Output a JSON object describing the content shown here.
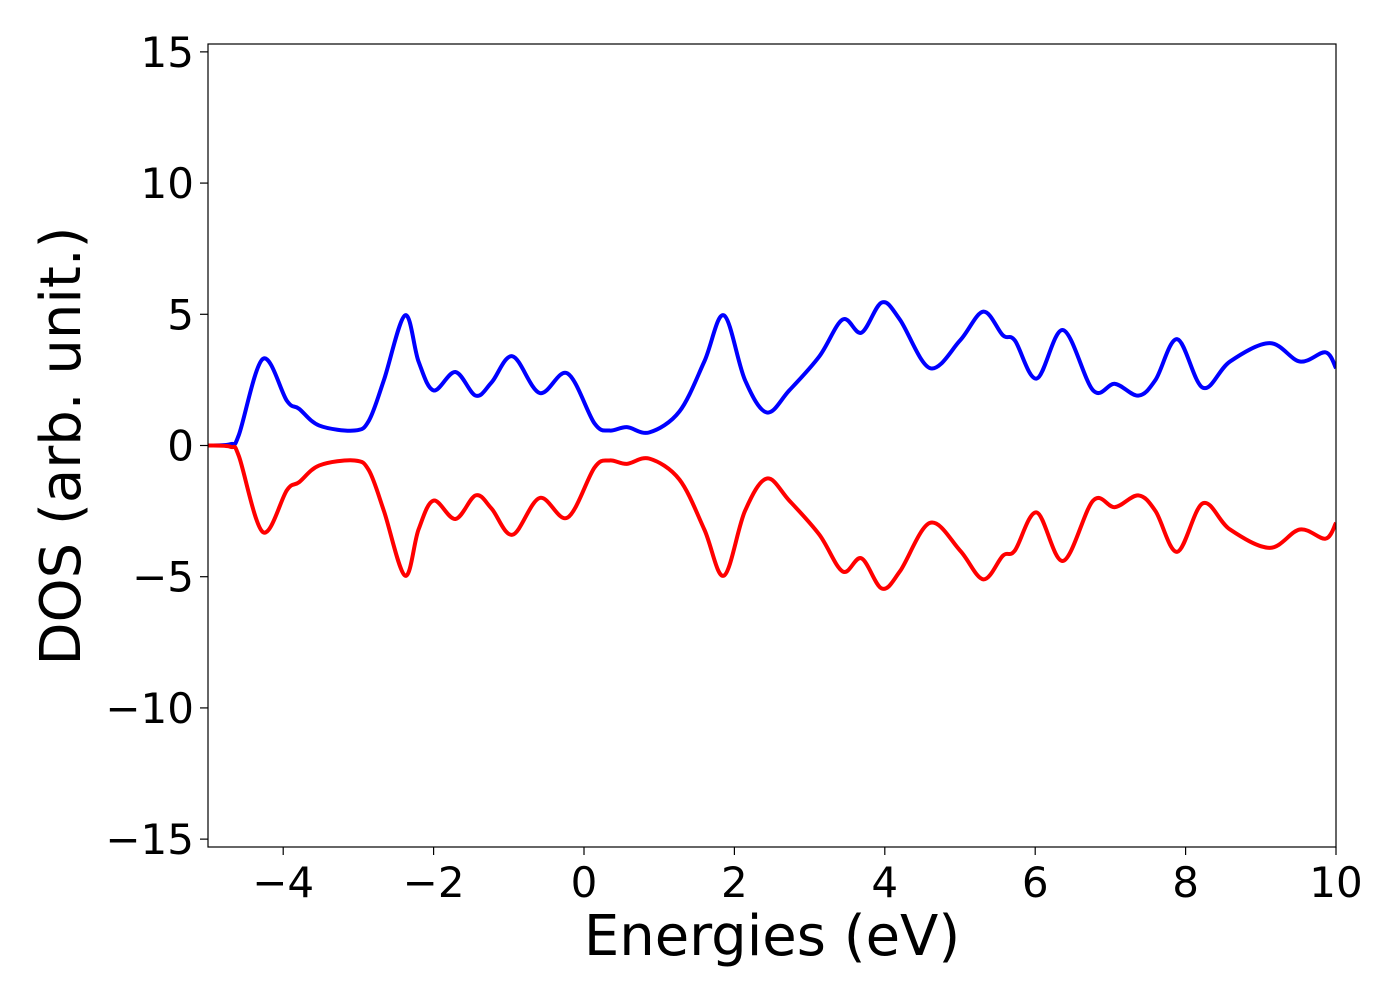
{
  "chart_data": {
    "type": "line",
    "title": "",
    "xlabel": "Energies (eV)",
    "ylabel": "DOS (arb. unit.)",
    "xlim": [
      -5,
      10
    ],
    "ylim": [
      -15.3,
      15.3
    ],
    "xticks": [
      -4,
      -2,
      0,
      2,
      4,
      6,
      8,
      10
    ],
    "xtick_labels": [
      "−4",
      "−2",
      "0",
      "2",
      "4",
      "6",
      "8",
      "10"
    ],
    "yticks": [
      -15,
      -10,
      -5,
      0,
      5,
      10,
      15
    ],
    "ytick_labels": [
      "−15",
      "−10",
      "−5",
      "0",
      "5",
      "10",
      "15"
    ],
    "grid": false,
    "legend": "none",
    "x": [
      -5,
      -4.7,
      -4.59,
      -4.27,
      -3.95,
      -3.79,
      -3.52,
      -3.05,
      -2.86,
      -2.66,
      -2.38,
      -2.2,
      -2.0,
      -1.71,
      -1.44,
      -1.23,
      -0.95,
      -0.59,
      -0.22,
      0.14,
      0.34,
      0.57,
      0.87,
      1.27,
      1.6,
      1.86,
      2.14,
      2.43,
      2.73,
      3.13,
      3.44,
      3.69,
      3.96,
      4.2,
      4.6,
      5.0,
      5.31,
      5.57,
      5.73,
      6.02,
      6.37,
      6.77,
      7.06,
      7.37,
      7.6,
      7.89,
      8.23,
      8.59,
      9.12,
      9.52,
      9.86,
      10
    ],
    "series": [
      {
        "color": "#0000ff",
        "values": [
          0,
          0.05,
          0.4,
          3.3,
          1.7,
          1.4,
          0.76,
          0.57,
          0.95,
          2.5,
          4.96,
          3.2,
          2.1,
          2.8,
          1.9,
          2.4,
          3.4,
          2.0,
          2.75,
          0.84,
          0.57,
          0.7,
          0.5,
          1.3,
          3.2,
          4.96,
          2.5,
          1.26,
          2.1,
          3.4,
          4.8,
          4.3,
          5.45,
          4.8,
          2.95,
          4.0,
          5.1,
          4.2,
          4.0,
          2.55,
          4.4,
          2.1,
          2.35,
          1.9,
          2.5,
          4.05,
          2.2,
          3.2,
          3.9,
          3.2,
          3.55,
          2.95
        ]
      },
      {
        "color": "#ff0000",
        "values": [
          0,
          -0.05,
          -0.4,
          -3.3,
          -1.7,
          -1.4,
          -0.76,
          -0.57,
          -0.95,
          -2.5,
          -4.96,
          -3.2,
          -2.1,
          -2.8,
          -1.9,
          -2.4,
          -3.4,
          -2.0,
          -2.75,
          -0.84,
          -0.57,
          -0.7,
          -0.5,
          -1.3,
          -3.2,
          -4.96,
          -2.5,
          -1.26,
          -2.1,
          -3.4,
          -4.8,
          -4.3,
          -5.45,
          -4.8,
          -2.95,
          -4.0,
          -5.1,
          -4.2,
          -4.0,
          -2.55,
          -4.4,
          -2.1,
          -2.35,
          -1.9,
          -2.5,
          -4.05,
          -2.2,
          -3.2,
          -3.9,
          -3.2,
          -3.55,
          -2.95
        ]
      }
    ]
  }
}
